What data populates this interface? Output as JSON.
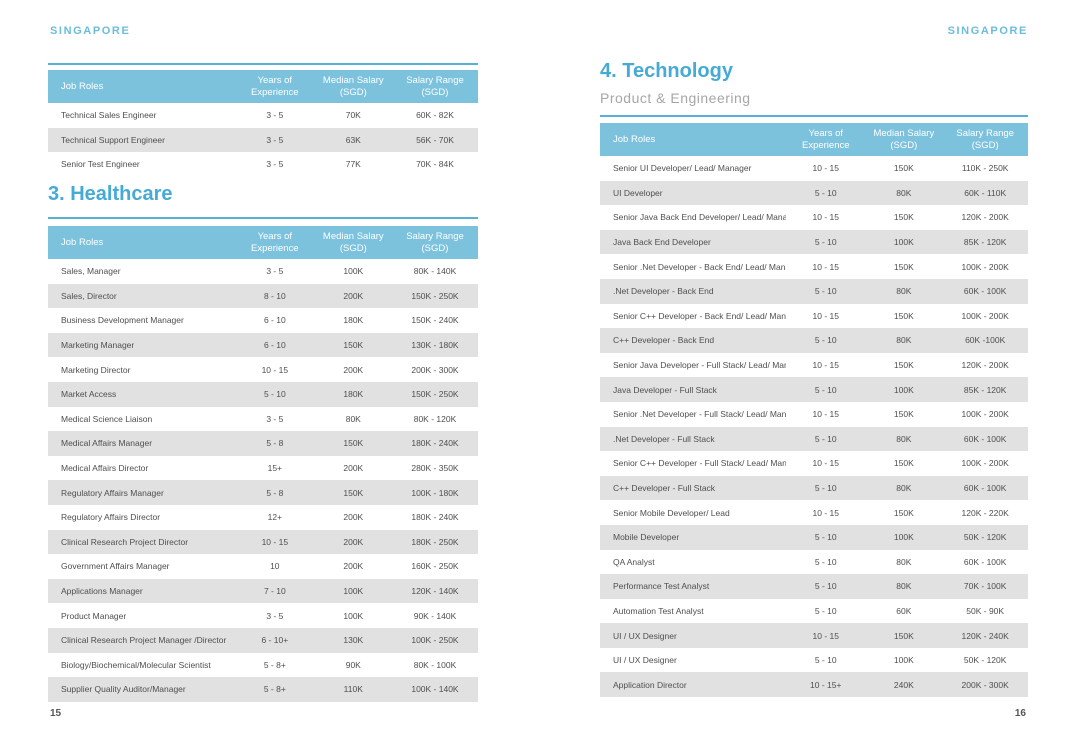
{
  "colors": {
    "accent": "#45abd6",
    "brand": "#6cbcdc",
    "header_bg": "#7cc2dd",
    "row_alt": "#e1e1e1",
    "body_text": "#4f4f4f",
    "subtitle": "#a6a6a6",
    "rule": "#56b1d4"
  },
  "columns": {
    "job": "Job Roles",
    "years_l1": "Years of",
    "years_l2": "Experience",
    "median_l1": "Median Salary",
    "median_l2": "(SGD)",
    "range_l1": "Salary Range",
    "range_l2": "(SGD)"
  },
  "page_left": {
    "brand": "SINGAPORE",
    "page_number": "15",
    "section_healthcare_title": "3. Healthcare",
    "table_top_rows": [
      {
        "role": "Technical Sales Engineer",
        "years": "3 - 5",
        "median": "70K",
        "range": "60K - 82K"
      },
      {
        "role": "Technical Support Engineer",
        "years": "3 - 5",
        "median": "63K",
        "range": "56K - 70K"
      },
      {
        "role": "Senior Test Engineer",
        "years": "3 - 5",
        "median": "77K",
        "range": "70K - 84K"
      }
    ],
    "table_healthcare_rows": [
      {
        "role": "Sales, Manager",
        "years": "3 - 5",
        "median": "100K",
        "range": "80K - 140K"
      },
      {
        "role": "Sales, Director",
        "years": "8 - 10",
        "median": "200K",
        "range": "150K - 250K"
      },
      {
        "role": "Business Development Manager",
        "years": "6 - 10",
        "median": "180K",
        "range": "150K - 240K"
      },
      {
        "role": "Marketing Manager",
        "years": "6 - 10",
        "median": "150K",
        "range": "130K - 180K"
      },
      {
        "role": "Marketing Director",
        "years": "10 - 15",
        "median": "200K",
        "range": "200K - 300K"
      },
      {
        "role": "Market Access",
        "years": "5 - 10",
        "median": "180K",
        "range": "150K - 250K"
      },
      {
        "role": "Medical Science Liaison",
        "years": "3 - 5",
        "median": "80K",
        "range": "80K - 120K"
      },
      {
        "role": "Medical Affairs Manager",
        "years": "5 - 8",
        "median": "150K",
        "range": "180K - 240K"
      },
      {
        "role": "Medical Affairs Director",
        "years": "15+",
        "median": "200K",
        "range": "280K - 350K"
      },
      {
        "role": "Regulatory Affairs Manager",
        "years": "5 - 8",
        "median": "150K",
        "range": "100K - 180K"
      },
      {
        "role": "Regulatory Affairs Director",
        "years": "12+",
        "median": "200K",
        "range": "180K - 240K"
      },
      {
        "role": "Clinical Research Project Director",
        "years": "10 - 15",
        "median": "200K",
        "range": "180K - 250K"
      },
      {
        "role": "Government Affairs Manager",
        "years": "10",
        "median": "200K",
        "range": "160K - 250K"
      },
      {
        "role": "Applications Manager",
        "years": "7 - 10",
        "median": "100K",
        "range": "120K - 140K"
      },
      {
        "role": "Product Manager",
        "years": "3 - 5",
        "median": "100K",
        "range": "90K - 140K"
      },
      {
        "role": "Clinical Research Project Manager /Director",
        "years": "6 - 10+",
        "median": "130K",
        "range": "100K - 250K"
      },
      {
        "role": "Biology/Biochemical/Molecular Scientist",
        "years": "5 - 8+",
        "median": "90K",
        "range": "80K - 100K"
      },
      {
        "role": "Supplier Quality Auditor/Manager",
        "years": "5 - 8+",
        "median": "110K",
        "range": "100K - 140K"
      }
    ]
  },
  "page_right": {
    "brand": "SINGAPORE",
    "page_number": "16",
    "section_technology_title": "4. Technology",
    "section_technology_subtitle": "Product & Engineering",
    "table_technology_rows": [
      {
        "role": "Senior UI Developer/ Lead/ Manager",
        "years": "10 - 15",
        "median": "150K",
        "range": "110K - 250K"
      },
      {
        "role": "UI Developer",
        "years": "5 - 10",
        "median": "80K",
        "range": "60K - 110K"
      },
      {
        "role": "Senior Java Back End Developer/ Lead/ Manager",
        "years": "10 - 15",
        "median": "150K",
        "range": "120K - 200K"
      },
      {
        "role": "Java Back End Developer",
        "years": "5 - 10",
        "median": "100K",
        "range": "85K - 120K"
      },
      {
        "role": "Senior .Net Developer - Back End/ Lead/ Manager",
        "years": "10 - 15",
        "median": "150K",
        "range": "100K - 200K"
      },
      {
        "role": ".Net Developer - Back End",
        "years": "5 - 10",
        "median": "80K",
        "range": "60K - 100K"
      },
      {
        "role": "Senior C++ Developer - Back End/ Lead/ Manager",
        "years": "10 - 15",
        "median": "150K",
        "range": "100K - 200K"
      },
      {
        "role": "C++ Developer - Back End",
        "years": "5 - 10",
        "median": "80K",
        "range": "60K -100K"
      },
      {
        "role": "Senior Java Developer - Full Stack/ Lead/ Manager",
        "years": "10 - 15",
        "median": "150K",
        "range": "120K - 200K"
      },
      {
        "role": "Java Developer - Full Stack",
        "years": "5 - 10",
        "median": "100K",
        "range": "85K - 120K"
      },
      {
        "role": "Senior .Net Developer - Full Stack/ Lead/ Manager",
        "years": "10 - 15",
        "median": "150K",
        "range": "100K - 200K"
      },
      {
        "role": ".Net Developer - Full Stack",
        "years": "5 - 10",
        "median": "80K",
        "range": "60K - 100K"
      },
      {
        "role": "Senior C++ Developer - Full Stack/ Lead/ Manager",
        "years": "10 - 15",
        "median": "150K",
        "range": "100K - 200K"
      },
      {
        "role": "C++ Developer - Full Stack",
        "years": "5 - 10",
        "median": "80K",
        "range": "60K - 100K"
      },
      {
        "role": "Senior Mobile Developer/ Lead",
        "years": "10 - 15",
        "median": "150K",
        "range": "120K - 220K"
      },
      {
        "role": "Mobile Developer",
        "years": "5 - 10",
        "median": "100K",
        "range": "50K - 120K"
      },
      {
        "role": "QA Analyst",
        "years": "5 - 10",
        "median": "80K",
        "range": "60K - 100K"
      },
      {
        "role": "Performance Test Analyst",
        "years": "5 - 10",
        "median": "80K",
        "range": "70K - 100K"
      },
      {
        "role": "Automation Test Analyst",
        "years": "5 - 10",
        "median": "60K",
        "range": "50K - 90K"
      },
      {
        "role": "UI / UX Designer",
        "years": "10 - 15",
        "median": "150K",
        "range": "120K - 240K"
      },
      {
        "role": "UI / UX Designer",
        "years": "5 - 10",
        "median": "100K",
        "range": "50K - 120K"
      },
      {
        "role": "Application Director",
        "years": "10 - 15+",
        "median": "240K",
        "range": "200K - 300K"
      }
    ]
  }
}
